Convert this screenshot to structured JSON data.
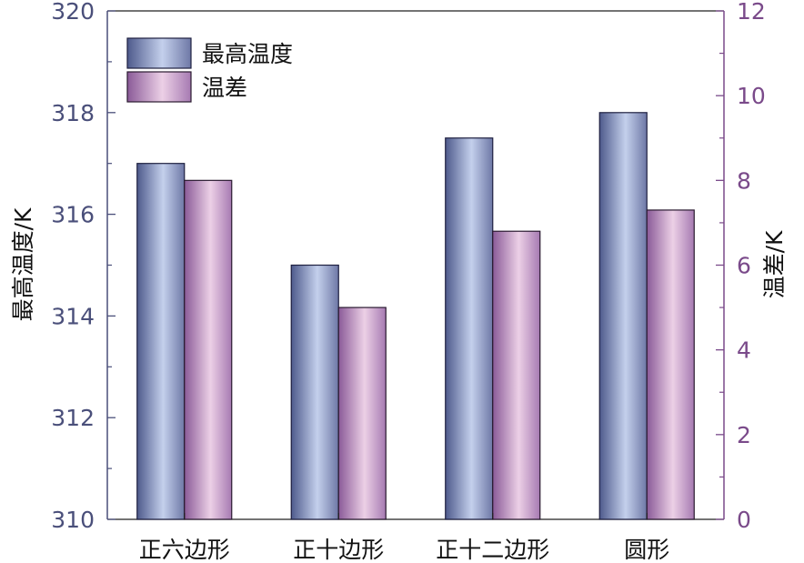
{
  "chart_data": {
    "type": "bar",
    "categories": [
      "正六边形",
      "正十边形",
      "正十二边形",
      "圆形"
    ],
    "series": [
      {
        "name": "最高温度",
        "axis": "left",
        "values": [
          317.0,
          315.0,
          317.5,
          318.0
        ]
      },
      {
        "name": "温差",
        "axis": "right",
        "values": [
          8.0,
          5.0,
          6.8,
          7.3
        ]
      }
    ],
    "left_axis": {
      "label": "最高温度/K",
      "ylim": [
        310,
        320
      ],
      "ticks": [
        310,
        312,
        314,
        316,
        318,
        320
      ]
    },
    "right_axis": {
      "label": "温差/K",
      "ylim": [
        0,
        12
      ],
      "ticks": [
        0,
        2,
        4,
        6,
        8,
        10,
        12
      ]
    },
    "legend": {
      "position": "top-left"
    },
    "grid": false
  },
  "colors": {
    "left_axis": "#4a4f7a",
    "right_axis": "#7a4a8a",
    "series1_light": "#c4d0ec",
    "series1_dark": "#4e5a8c",
    "series2_light": "#ecd0e6",
    "series2_dark": "#8a5a98"
  }
}
